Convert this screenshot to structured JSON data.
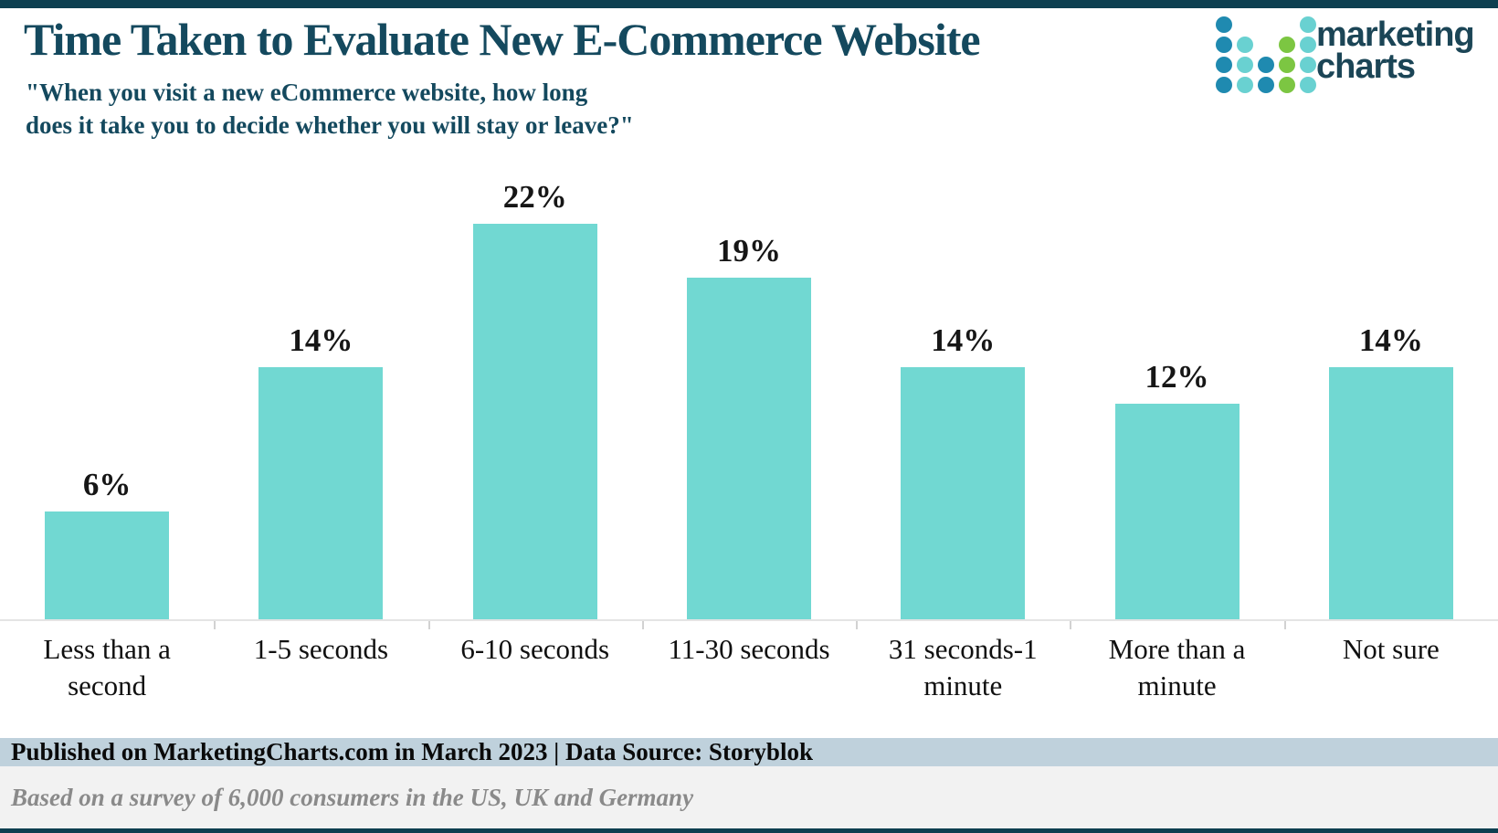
{
  "chart_data": {
    "type": "bar",
    "title": "Time Taken to Evaluate New E-Commerce Website",
    "subtitle_lines": [
      "\"When you visit a new eCommerce website, how long",
      "does it take you to decide whether you will stay or leave?\""
    ],
    "categories": [
      "Less than a second",
      "1-5 seconds",
      "6-10 seconds",
      "11-30 seconds",
      "31 seconds-1 minute",
      "More than a minute",
      "Not sure"
    ],
    "values": [
      6,
      14,
      22,
      19,
      14,
      12,
      14
    ],
    "value_suffix": "%",
    "ylim": [
      0,
      22
    ],
    "y_axis_visible": false,
    "grid": false,
    "legend": "none",
    "data_labels": "above-bars",
    "bar_color": "#71d8d2",
    "axis_line_color": "#e4e4e4",
    "tick_color": "#d2d2d2"
  },
  "logo": {
    "line1": "marketing",
    "line2": "charts",
    "text_color": "#1b4556",
    "dot_colors": {
      "dark": "#1f8ab0",
      "teal": "#69d1d1",
      "green": "#7cc642"
    },
    "dot_matrix": [
      [
        "dark",
        null,
        null,
        null,
        "teal"
      ],
      [
        "dark",
        "teal",
        null,
        "green",
        "teal"
      ],
      [
        "dark",
        "teal",
        "dark",
        "green",
        "teal"
      ],
      [
        "dark",
        "teal",
        "dark",
        "green",
        "teal"
      ]
    ]
  },
  "footer": {
    "published_line": "Published on MarketingCharts.com in March 2023 | Data Source: Storyblok",
    "published_band_color": "#bfd1dc",
    "basis_line": "Based on a survey of 6,000 consumers in the US, UK and Germany",
    "basis_band_color": "#f2f2f2"
  },
  "theme": {
    "accent_bar_color": "#0d3f50",
    "title_color": "#14495e"
  }
}
